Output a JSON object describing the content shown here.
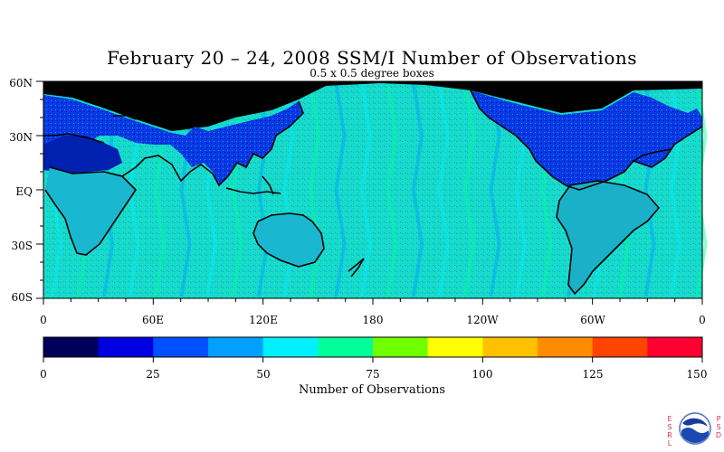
{
  "title": "February 20 – 24, 2008 SSM/I Number of Observations",
  "subtitle": "0.5 x 0.5 degree boxes",
  "map": {
    "projection": "equirectangular",
    "lon_range": [
      0,
      360
    ],
    "lat_range": [
      -60,
      60
    ],
    "y_tick_labels": [
      "60N",
      "30N",
      "EQ",
      "30S",
      "60S"
    ],
    "x_tick_labels": [
      "0",
      "60E",
      "120E",
      "180",
      "120W",
      "60W",
      "0"
    ],
    "features": [
      "coastlines",
      "orbit-swath-pattern"
    ],
    "land_color": "#0a20d8",
    "ocean_color": "#20e0c0",
    "no_data_color": "#000000"
  },
  "colorbar": {
    "label": "Number of Observations",
    "tick_labels": [
      "0",
      "25",
      "50",
      "75",
      "100",
      "125",
      "150"
    ],
    "range": [
      0,
      150
    ],
    "colors": [
      "#00005a",
      "#0000e0",
      "#0050ff",
      "#00a0ff",
      "#00f0ff",
      "#00ff9a",
      "#70ff00",
      "#ffff00",
      "#ffc000",
      "#ff8c00",
      "#ff4400",
      "#ff0030"
    ]
  },
  "logo": {
    "left_text": [
      "E",
      "S",
      "R",
      "L"
    ],
    "right_text": [
      "P",
      "S",
      "D"
    ],
    "seal_text": "NOAA"
  }
}
